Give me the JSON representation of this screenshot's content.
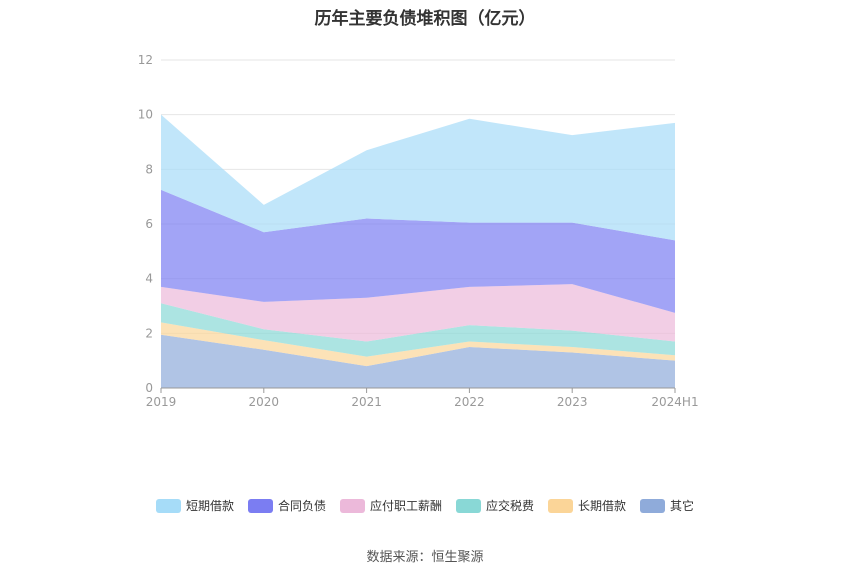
{
  "chart_data": {
    "type": "area",
    "stacked": true,
    "title": "历年主要负债堆积图（亿元）",
    "source": "数据来源：恒生聚源",
    "categories": [
      "2019",
      "2020",
      "2021",
      "2022",
      "2023",
      "2024H1"
    ],
    "ylim": [
      0,
      12
    ],
    "yticks": [
      "0",
      "2",
      "4",
      "6",
      "8",
      "10",
      "12"
    ],
    "grid": true,
    "legend_position": "bottom",
    "series": [
      {
        "name": "其它",
        "color": "#8fabda",
        "values": [
          1.95,
          1.4,
          0.8,
          1.5,
          1.3,
          1.0
        ]
      },
      {
        "name": "长期借款",
        "color": "#fbd598",
        "values": [
          0.45,
          0.35,
          0.35,
          0.2,
          0.2,
          0.2
        ]
      },
      {
        "name": "应交税费",
        "color": "#89d8d6",
        "values": [
          0.7,
          0.4,
          0.55,
          0.6,
          0.6,
          0.5
        ]
      },
      {
        "name": "应付职工薪酬",
        "color": "#ecb9da",
        "values": [
          0.6,
          1.0,
          1.6,
          1.4,
          1.7,
          1.05
        ]
      },
      {
        "name": "合同负债",
        "color": "#7b7df2",
        "values": [
          3.55,
          2.55,
          2.9,
          2.35,
          2.25,
          2.65
        ]
      },
      {
        "name": "短期借款",
        "color": "#a6dcf8",
        "values": [
          2.75,
          1.0,
          2.5,
          3.8,
          3.2,
          4.3
        ]
      }
    ],
    "legend_order": [
      "短期借款",
      "合同负债",
      "应付职工薪酬",
      "应交税费",
      "长期借款",
      "其它"
    ]
  }
}
